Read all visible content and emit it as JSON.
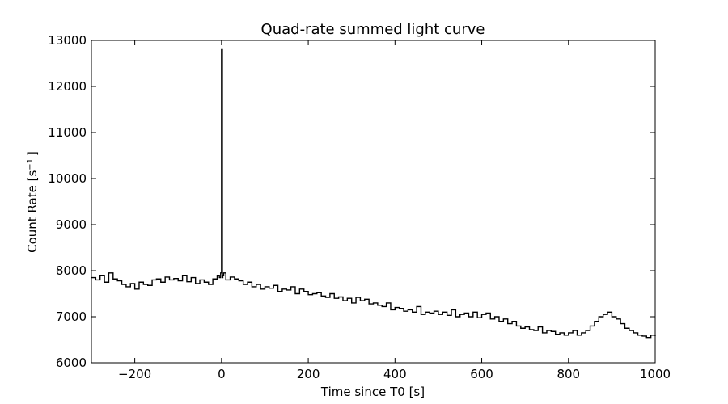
{
  "chart_data": {
    "type": "line",
    "title": "Quad-rate summed light curve",
    "xlabel": "Time since T0 [s]",
    "ylabel_main": "Count Rate [s",
    "ylabel_sup": "−1",
    "ylabel_end": "]",
    "xlim": [
      -300,
      1000
    ],
    "ylim": [
      6000,
      13000
    ],
    "xticks": [
      -200,
      0,
      200,
      400,
      600,
      800,
      1000
    ],
    "xtick_labels": [
      "−200",
      "0",
      "200",
      "400",
      "600",
      "800",
      "1000"
    ],
    "yticks": [
      6000,
      7000,
      8000,
      9000,
      10000,
      11000,
      12000,
      13000
    ],
    "ytick_labels": [
      "6000",
      "7000",
      "8000",
      "9000",
      "10000",
      "11000",
      "12000",
      "13000"
    ],
    "grid": false,
    "line_color": "#000000",
    "series": [
      {
        "x": [
          -300,
          -290,
          -280,
          -270,
          -260,
          -250,
          -240,
          -230,
          -220,
          -210,
          -200,
          -190,
          -180,
          -170,
          -160,
          -150,
          -140,
          -130,
          -120,
          -110,
          -100,
          -90,
          -80,
          -70,
          -60,
          -50,
          -40,
          -30,
          -20,
          -10,
          -5,
          -2,
          0,
          1,
          2,
          3,
          5,
          10,
          20,
          30,
          40,
          50,
          60,
          70,
          80,
          90,
          100,
          110,
          120,
          130,
          140,
          150,
          160,
          170,
          180,
          190,
          200,
          210,
          220,
          230,
          240,
          250,
          260,
          270,
          280,
          290,
          300,
          310,
          320,
          330,
          340,
          350,
          360,
          370,
          380,
          390,
          400,
          410,
          420,
          430,
          440,
          450,
          460,
          470,
          480,
          490,
          500,
          510,
          520,
          530,
          540,
          550,
          560,
          570,
          580,
          590,
          600,
          610,
          620,
          630,
          640,
          650,
          660,
          670,
          680,
          690,
          700,
          710,
          720,
          730,
          740,
          750,
          760,
          770,
          780,
          790,
          800,
          810,
          820,
          830,
          840,
          850,
          860,
          870,
          880,
          890,
          900,
          910,
          920,
          930,
          940,
          950,
          960,
          970,
          980,
          990,
          1000
        ],
        "y": [
          7850,
          7800,
          7900,
          7750,
          7950,
          7820,
          7780,
          7700,
          7650,
          7720,
          7600,
          7750,
          7700,
          7680,
          7800,
          7820,
          7750,
          7860,
          7800,
          7830,
          7780,
          7900,
          7760,
          7850,
          7720,
          7800,
          7750,
          7700,
          7820,
          7900,
          7850,
          7950,
          12800,
          12800,
          7850,
          7900,
          7950,
          7800,
          7860,
          7820,
          7780,
          7700,
          7750,
          7650,
          7700,
          7600,
          7650,
          7620,
          7680,
          7550,
          7600,
          7580,
          7650,
          7500,
          7600,
          7550,
          7480,
          7500,
          7520,
          7450,
          7420,
          7500,
          7400,
          7430,
          7350,
          7400,
          7300,
          7420,
          7350,
          7380,
          7280,
          7300,
          7250,
          7220,
          7300,
          7150,
          7200,
          7180,
          7120,
          7150,
          7100,
          7220,
          7050,
          7100,
          7080,
          7120,
          7050,
          7100,
          7030,
          7150,
          7000,
          7050,
          7080,
          7000,
          7100,
          6980,
          7050,
          7080,
          6950,
          7000,
          6900,
          6950,
          6850,
          6900,
          6800,
          6750,
          6780,
          6720,
          6700,
          6780,
          6650,
          6700,
          6680,
          6620,
          6650,
          6600,
          6650,
          6700,
          6600,
          6650,
          6700,
          6800,
          6900,
          7000,
          7050,
          7100,
          7000,
          6950,
          6850,
          6750,
          6700,
          6650,
          6600,
          6580,
          6550,
          6600,
          6580
        ]
      }
    ]
  }
}
